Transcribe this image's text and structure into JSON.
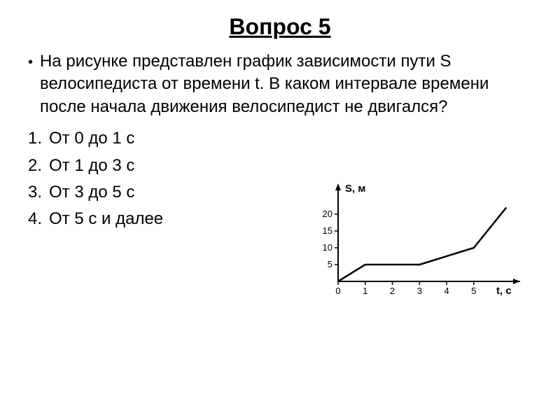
{
  "title": "Вопрос 5",
  "question": "На рисунке представлен график зависимости пути S велосипедиста от времени t. В каком интервале времени после начала движения велосипедист  не двигался?",
  "options": [
    "От 0 до 1 с",
    "От 1 до 3 с",
    "От 3 до 5 с",
    "От 5 с и далее"
  ],
  "chart": {
    "type": "line",
    "y_label": "S, м",
    "x_label": "t, с",
    "x_ticks": [
      0,
      1,
      2,
      3,
      4,
      5
    ],
    "y_ticks": [
      5,
      10,
      15,
      20
    ],
    "x_range": [
      0,
      6.5
    ],
    "y_range": [
      0,
      25
    ],
    "data_points": [
      {
        "x": 0,
        "y": 0
      },
      {
        "x": 1,
        "y": 5
      },
      {
        "x": 3,
        "y": 5
      },
      {
        "x": 5,
        "y": 10
      },
      {
        "x": 6.2,
        "y": 22
      }
    ],
    "line_color": "#000000",
    "line_width": 2.5,
    "axis_color": "#000000",
    "axis_width": 2,
    "tick_color": "#000000",
    "tick_font_size": 13,
    "label_font_size": 15,
    "label_font_weight": "bold",
    "background_color": "#ffffff"
  }
}
